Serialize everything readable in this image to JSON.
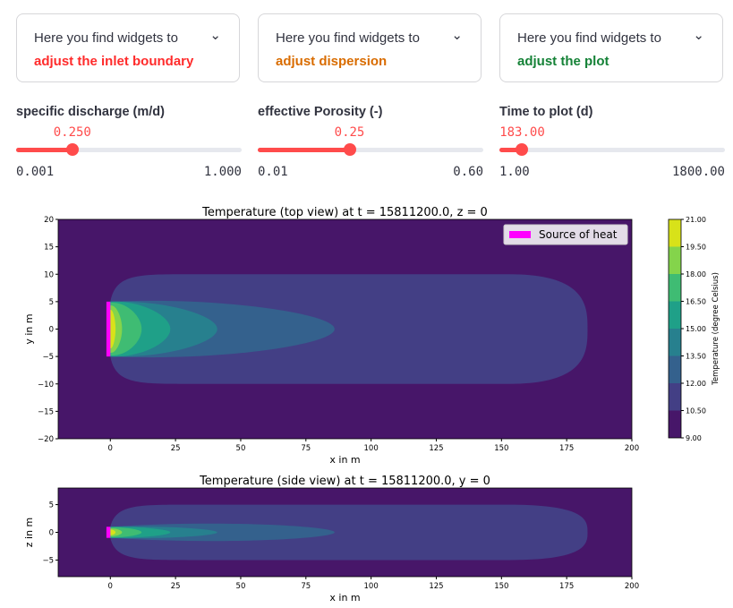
{
  "expanders": [
    {
      "line1": "Here you find widgets to",
      "line2": "adjust the inlet boundary",
      "color": "#ff2b2b"
    },
    {
      "line1": "Here you find widgets to",
      "line2": "adjust dispersion",
      "color": "#d96c00"
    },
    {
      "line1": "Here you find widgets to",
      "line2": "adjust the plot",
      "color": "#158237"
    }
  ],
  "sliders": [
    {
      "label": "specific discharge (m/d)",
      "value": 0.25,
      "value_text": "0.250",
      "min": 0.001,
      "max": 1.0,
      "min_text": "0.001",
      "max_text": "1.000"
    },
    {
      "label": "effective Porosity (-)",
      "value": 0.25,
      "value_text": "0.25",
      "min": 0.01,
      "max": 0.6,
      "min_text": "0.01",
      "max_text": "0.60"
    },
    {
      "label": "Time to plot (d)",
      "value": 183.0,
      "value_text": "183.00",
      "min": 1.0,
      "max": 1800.0,
      "min_text": "1.00",
      "max_text": "1800.00"
    }
  ],
  "chart_data": [
    {
      "type": "contour",
      "title": "Temperature (top view) at t = 15811200.0, z = 0",
      "xlabel": "x in m",
      "ylabel": "y in m",
      "xlim": [
        -20,
        200
      ],
      "ylim": [
        -20,
        20
      ],
      "xticks": [
        0,
        25,
        50,
        75,
        100,
        125,
        150,
        175,
        200
      ],
      "yticks": [
        -20,
        -15,
        -10,
        -5,
        0,
        5,
        10,
        15,
        20
      ],
      "legend": {
        "label": "Source of heat",
        "color": "#ff00ff",
        "placement": "top-right"
      },
      "source": {
        "x": [
          -1.5,
          0
        ],
        "y": [
          -5,
          5
        ]
      },
      "contours": [
        {
          "level": 10.5,
          "x_max": 183,
          "half_width": 10,
          "source_half_width": 5
        },
        {
          "level": 12,
          "x_max": 86,
          "half_width": 5.6,
          "source_half_width": 5
        },
        {
          "level": 13.5,
          "x_max": 41,
          "half_width": 5.1,
          "source_half_width": 5
        },
        {
          "level": 15,
          "x_max": 23,
          "half_width": 5,
          "source_half_width": 5
        },
        {
          "level": 16.5,
          "x_max": 12,
          "half_width": 4.8,
          "source_half_width": 4.8
        },
        {
          "level": 18,
          "x_max": 4.5,
          "half_width": 4.3,
          "source_half_width": 4.3
        },
        {
          "level": 19.5,
          "x_max": 2,
          "half_width": 3.5,
          "source_half_width": 3.5
        }
      ]
    },
    {
      "type": "contour",
      "title": "Temperature (side view) at t = 15811200.0, y = 0",
      "xlabel": "x in m",
      "ylabel": "z in m",
      "xlim": [
        -20,
        200
      ],
      "ylim": [
        -8,
        8
      ],
      "xticks": [
        0,
        25,
        50,
        75,
        100,
        125,
        150,
        175,
        200
      ],
      "yticks": [
        -5,
        0,
        5
      ],
      "source": {
        "x": [
          -1.5,
          0
        ],
        "y": [
          -1,
          1
        ]
      },
      "contours": [
        {
          "level": 10.5,
          "x_max": 183,
          "half_width": 5,
          "source_half_width": 1
        },
        {
          "level": 12,
          "x_max": 86,
          "half_width": 2.2,
          "source_half_width": 1
        },
        {
          "level": 13.5,
          "x_max": 41,
          "half_width": 1.2,
          "source_half_width": 1
        },
        {
          "level": 15,
          "x_max": 23,
          "half_width": 1,
          "source_half_width": 1
        },
        {
          "level": 16.5,
          "x_max": 12,
          "half_width": 0.9,
          "source_half_width": 0.9
        },
        {
          "level": 18,
          "x_max": 4.5,
          "half_width": 0.7,
          "source_half_width": 0.7
        },
        {
          "level": 19.5,
          "x_max": 2,
          "half_width": 0.5,
          "source_half_width": 0.5
        }
      ]
    }
  ],
  "colorbar": {
    "label": "Temperature (degree Celsius)",
    "levels": [
      "9.00",
      "10.50",
      "12.00",
      "13.50",
      "15.00",
      "16.50",
      "18.00",
      "19.50",
      "21.00"
    ],
    "colors": [
      "#471669",
      "#433f85",
      "#34618d",
      "#27808e",
      "#1fa088",
      "#3fbc73",
      "#84d44b",
      "#d8e219"
    ]
  }
}
